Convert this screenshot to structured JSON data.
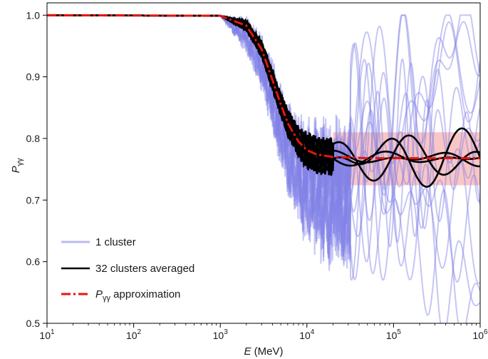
{
  "chart_data": {
    "type": "line",
    "title": "",
    "xscale": "log",
    "xlim": [
      10,
      1000000
    ],
    "ylim": [
      0.5,
      1.02
    ],
    "grid": false,
    "xlabel": {
      "symbol": "E",
      "unit": " (MeV)"
    },
    "ylabel": {
      "symbol": "P",
      "subscript": "γγ"
    },
    "x_ticks": [
      {
        "base": "10",
        "exp": "1",
        "value": 10
      },
      {
        "base": "10",
        "exp": "2",
        "value": 100
      },
      {
        "base": "10",
        "exp": "3",
        "value": 1000
      },
      {
        "base": "10",
        "exp": "4",
        "value": 10000
      },
      {
        "base": "10",
        "exp": "5",
        "value": 100000
      },
      {
        "base": "10",
        "exp": "6",
        "value": 1000000
      }
    ],
    "y_ticks": [
      {
        "label": "0.5",
        "value": 0.5
      },
      {
        "label": "0.6",
        "value": 0.6
      },
      {
        "label": "0.7",
        "value": 0.7
      },
      {
        "label": "0.8",
        "value": 0.8
      },
      {
        "label": "0.9",
        "value": 0.9
      },
      {
        "label": "1.0",
        "value": 1.0
      }
    ],
    "legend_position": "bottom-left",
    "legend": [
      {
        "label": "1 cluster",
        "style": "thin translucent blue lines",
        "color": "#8080e6"
      },
      {
        "label": "32 clusters averaged",
        "style": "solid black line",
        "color": "#000000"
      },
      {
        "label_symbol": "P",
        "label_subscript": "γγ",
        "label_rest": " approximation",
        "style": "red dash-dot line",
        "color": "#e8150e"
      }
    ],
    "approximation_band": {
      "x_from": 20000,
      "x_to": 1000000,
      "y_low": 0.724,
      "y_high": 0.81,
      "color": "#f7b3b3"
    },
    "series": [
      {
        "label_symbol": "P",
        "label_subscript": "γγ",
        "label_rest": " approximation",
        "x": [
          10,
          1000,
          2000,
          3000,
          4000,
          5000,
          6000,
          8000,
          10000,
          13000,
          20000,
          50000,
          1000000
        ],
        "y": [
          1.0,
          0.999,
          0.983,
          0.945,
          0.895,
          0.855,
          0.825,
          0.795,
          0.781,
          0.774,
          0.77,
          0.768,
          0.768
        ]
      },
      {
        "label": "32 clusters averaged",
        "x": [
          10,
          1000,
          1500,
          2000,
          2500,
          3000,
          4000,
          5000,
          6000,
          7000,
          8000,
          10000,
          12000,
          15000,
          20000,
          25000,
          30000,
          40000,
          50000,
          70000,
          100000
        ],
        "y": [
          1.0,
          0.997,
          0.994,
          0.985,
          0.965,
          0.935,
          0.885,
          0.845,
          0.82,
          0.8,
          0.79,
          0.78,
          0.775,
          0.77,
          0.768,
          0.77,
          0.765,
          0.775,
          0.765,
          0.77,
          0.768
        ],
        "curves_after_1e5": 4,
        "range_after_1e5": [
          0.715,
          0.82
        ]
      },
      {
        "label": "1 cluster",
        "count_visible_to_1e6": 6,
        "endpoints_at_1e6": [
          0.98,
          0.94,
          0.8,
          0.78,
          0.64,
          0.53
        ]
      }
    ]
  }
}
